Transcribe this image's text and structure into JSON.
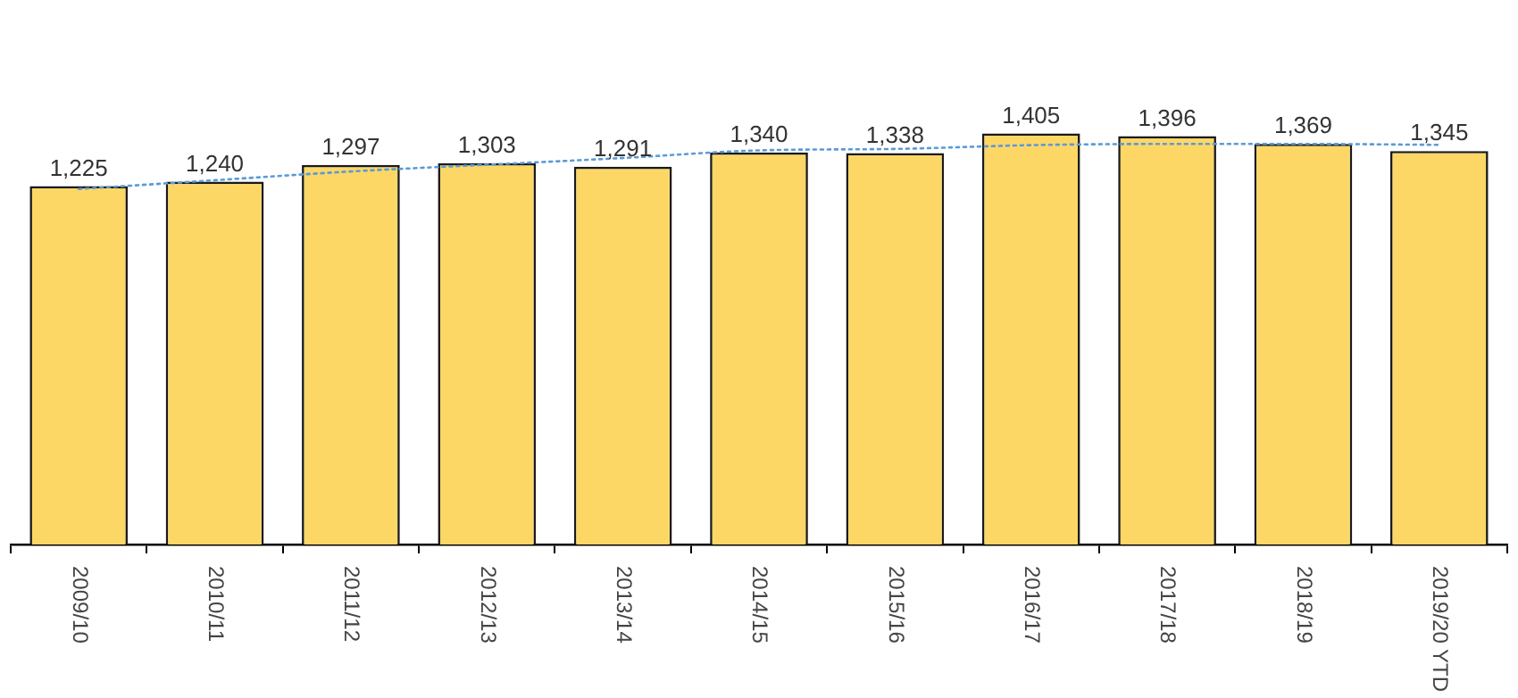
{
  "chart_data": {
    "type": "bar",
    "categories": [
      "2009/10",
      "2010/11",
      "2011/12",
      "2012/13",
      "2013/14",
      "2014/15",
      "2015/16",
      "2016/17",
      "2017/18",
      "2018/19",
      "2019/20 YTD"
    ],
    "series": [
      {
        "color": "#fdd766",
        "values": [
          1225,
          1240,
          1297,
          1303,
          1291,
          1340,
          1338,
          1405,
          1396,
          1369,
          1345
        ],
        "value_labels": [
          "1,225",
          "1,240",
          "1,297",
          "1,303",
          "1,291",
          "1,340",
          "1,338",
          "1,405",
          "1,396",
          "1,369",
          "1,345"
        ]
      },
      {
        "type": "line",
        "color": "#5b9bd5",
        "line_style": "dotted",
        "marker": "none",
        "x": [
          "2009/10",
          "2010/11",
          "2011/12",
          "2012/13",
          "2013/14",
          "2014/15",
          "2015/16",
          "2016/17",
          "2017/18",
          "2018/19",
          "2019/20 YTD"
        ],
        "values": [
          1215,
          1245,
          1275,
          1298,
          1321,
          1347,
          1352,
          1365,
          1369,
          1369,
          1366
        ]
      }
    ],
    "grid": false,
    "legend": false
  }
}
